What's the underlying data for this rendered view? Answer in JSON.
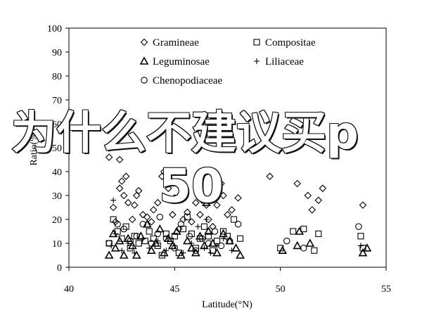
{
  "chart_data": {
    "type": "scatter",
    "xlabel": "Latitude(°N)",
    "ylabel": "Ratio(%)",
    "xlim": [
      40,
      55
    ],
    "ylim": [
      0,
      100
    ],
    "xticks": [
      40,
      45,
      50,
      55
    ],
    "yticks": [
      0,
      10,
      20,
      30,
      40,
      50,
      60,
      70,
      80,
      90,
      100
    ],
    "grid": false,
    "legend_position": "top-center",
    "series": [
      {
        "name": "Gramineae",
        "marker": "diamond",
        "points": [
          [
            42.1,
            25
          ],
          [
            42.2,
            19
          ],
          [
            42.4,
            33
          ],
          [
            42.5,
            36
          ],
          [
            42.6,
            30
          ],
          [
            42.7,
            38
          ],
          [
            42.8,
            27
          ],
          [
            43.0,
            20
          ],
          [
            43.1,
            26
          ],
          [
            43.2,
            30
          ],
          [
            43.3,
            32
          ],
          [
            43.5,
            22
          ],
          [
            43.7,
            21
          ],
          [
            43.9,
            19
          ],
          [
            44.0,
            24
          ],
          [
            44.2,
            27
          ],
          [
            44.4,
            38
          ],
          [
            44.5,
            40
          ],
          [
            44.7,
            33
          ],
          [
            44.9,
            22
          ],
          [
            45.0,
            29
          ],
          [
            45.2,
            16
          ],
          [
            45.4,
            20
          ],
          [
            45.6,
            23
          ],
          [
            45.8,
            19
          ],
          [
            46.0,
            27
          ],
          [
            46.2,
            22
          ],
          [
            46.3,
            28
          ],
          [
            46.5,
            26
          ],
          [
            46.6,
            20
          ],
          [
            46.8,
            17
          ],
          [
            47.0,
            26
          ],
          [
            47.2,
            35
          ],
          [
            47.3,
            30
          ],
          [
            47.5,
            22
          ],
          [
            47.7,
            24
          ],
          [
            48.0,
            29
          ],
          [
            41.9,
            46
          ],
          [
            51.3,
            30
          ],
          [
            51.5,
            24
          ],
          [
            51.8,
            28
          ],
          [
            53.9,
            26
          ],
          [
            42.4,
            45
          ],
          [
            49.5,
            38
          ],
          [
            50.8,
            35
          ],
          [
            52.0,
            33
          ]
        ]
      },
      {
        "name": "Compositae",
        "marker": "square",
        "points": [
          [
            41.9,
            10
          ],
          [
            42.1,
            20
          ],
          [
            42.3,
            15
          ],
          [
            42.5,
            12
          ],
          [
            42.7,
            17
          ],
          [
            42.9,
            8
          ],
          [
            43.1,
            13
          ],
          [
            43.3,
            10
          ],
          [
            43.6,
            11
          ],
          [
            43.8,
            15
          ],
          [
            44.0,
            12
          ],
          [
            44.2,
            9
          ],
          [
            44.4,
            5
          ],
          [
            44.6,
            14
          ],
          [
            44.8,
            11
          ],
          [
            45.0,
            13
          ],
          [
            45.2,
            6
          ],
          [
            45.4,
            16
          ],
          [
            45.6,
            21
          ],
          [
            45.8,
            14
          ],
          [
            46.0,
            8
          ],
          [
            46.2,
            12
          ],
          [
            46.4,
            17
          ],
          [
            46.6,
            13
          ],
          [
            46.8,
            7
          ],
          [
            47.0,
            11
          ],
          [
            47.3,
            15
          ],
          [
            47.5,
            13
          ],
          [
            47.8,
            20
          ],
          [
            48.1,
            12
          ],
          [
            50.6,
            15
          ],
          [
            51.1,
            16
          ],
          [
            51.8,
            14
          ],
          [
            53.8,
            13
          ],
          [
            53.9,
            8
          ],
          [
            50.0,
            8
          ],
          [
            51.6,
            7
          ]
        ]
      },
      {
        "name": "Leguminosae",
        "marker": "triangle",
        "points": [
          [
            41.9,
            5
          ],
          [
            42.1,
            14
          ],
          [
            42.2,
            8
          ],
          [
            42.4,
            11
          ],
          [
            42.6,
            5
          ],
          [
            42.8,
            12
          ],
          [
            43.0,
            9
          ],
          [
            43.2,
            5
          ],
          [
            43.4,
            13
          ],
          [
            43.7,
            18
          ],
          [
            43.9,
            7
          ],
          [
            44.1,
            10
          ],
          [
            44.3,
            16
          ],
          [
            44.5,
            6
          ],
          [
            44.7,
            12
          ],
          [
            44.9,
            9
          ],
          [
            45.1,
            15
          ],
          [
            45.3,
            5
          ],
          [
            45.6,
            11
          ],
          [
            45.8,
            8
          ],
          [
            46.0,
            6
          ],
          [
            46.2,
            13
          ],
          [
            46.4,
            9
          ],
          [
            46.6,
            15
          ],
          [
            46.8,
            10
          ],
          [
            47.0,
            6
          ],
          [
            47.3,
            14
          ],
          [
            47.6,
            11
          ],
          [
            47.9,
            8
          ],
          [
            48.1,
            5
          ],
          [
            50.1,
            7
          ],
          [
            50.8,
            9
          ],
          [
            50.9,
            15
          ],
          [
            51.4,
            10
          ],
          [
            53.9,
            6
          ],
          [
            54.1,
            8
          ],
          [
            46.5,
            27
          ]
        ]
      },
      {
        "name": "Liliaceae",
        "marker": "plus",
        "points": [
          [
            42.0,
            9
          ],
          [
            42.2,
            14
          ],
          [
            42.5,
            7
          ],
          [
            42.8,
            10
          ],
          [
            43.1,
            6
          ],
          [
            43.5,
            12
          ],
          [
            43.8,
            8
          ],
          [
            44.2,
            11
          ],
          [
            44.6,
            7
          ],
          [
            45.0,
            9
          ],
          [
            45.4,
            6
          ],
          [
            45.8,
            10
          ],
          [
            46.1,
            17
          ],
          [
            46.4,
            8
          ],
          [
            46.7,
            6
          ],
          [
            47.0,
            9
          ],
          [
            47.3,
            12
          ],
          [
            47.7,
            7
          ],
          [
            46.5,
            20
          ],
          [
            53.8,
            9
          ],
          [
            42.1,
            28
          ]
        ]
      },
      {
        "name": "Chenopodiaceae",
        "marker": "circle",
        "points": [
          [
            41.9,
            10
          ],
          [
            42.3,
            18
          ],
          [
            42.6,
            16
          ],
          [
            42.9,
            11
          ],
          [
            43.2,
            13
          ],
          [
            43.5,
            18
          ],
          [
            43.9,
            10
          ],
          [
            44.2,
            14
          ],
          [
            44.6,
            12
          ],
          [
            45.0,
            8
          ],
          [
            45.3,
            18
          ],
          [
            45.7,
            13
          ],
          [
            46.0,
            7
          ],
          [
            46.3,
            12
          ],
          [
            46.6,
            10
          ],
          [
            46.9,
            15
          ],
          [
            47.2,
            9
          ],
          [
            47.6,
            11
          ],
          [
            48.0,
            18
          ],
          [
            50.3,
            11
          ],
          [
            51.1,
            8
          ],
          [
            53.7,
            17
          ],
          [
            44.3,
            21
          ]
        ]
      }
    ]
  },
  "overlay": {
    "line1": "为什么不建议买p",
    "line2": "50"
  }
}
